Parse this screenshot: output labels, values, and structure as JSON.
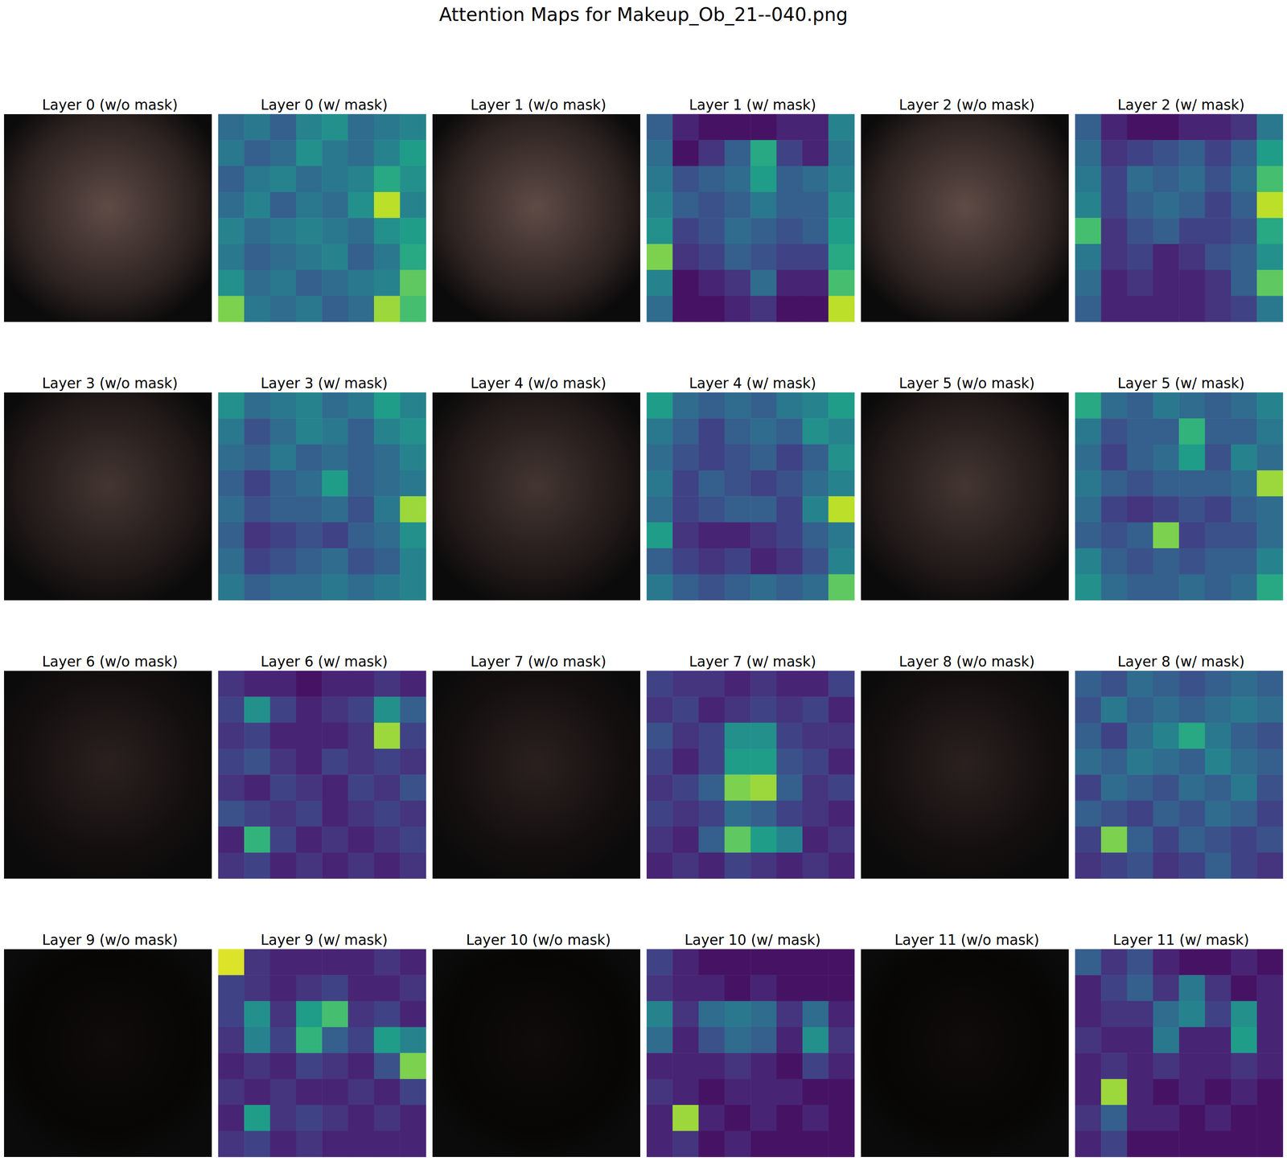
{
  "title": "Attention Maps for Makeup_Ob_21--040.png",
  "chart_data": [
    {
      "type": "image",
      "title": "Layer 0 (w/o mask)"
    },
    {
      "type": "heatmap",
      "title": "Layer 0 (w/ mask)",
      "zlim": [
        0,
        1
      ],
      "cells": [
        [
          0.35,
          0.4,
          0.3,
          0.45,
          0.5,
          0.35,
          0.4,
          0.45
        ],
        [
          0.4,
          0.3,
          0.35,
          0.5,
          0.4,
          0.35,
          0.45,
          0.55
        ],
        [
          0.3,
          0.4,
          0.45,
          0.35,
          0.4,
          0.45,
          0.6,
          0.5
        ],
        [
          0.35,
          0.45,
          0.3,
          0.4,
          0.35,
          0.5,
          0.9,
          0.45
        ],
        [
          0.45,
          0.35,
          0.4,
          0.45,
          0.4,
          0.35,
          0.5,
          0.55
        ],
        [
          0.4,
          0.3,
          0.35,
          0.4,
          0.45,
          0.3,
          0.4,
          0.6
        ],
        [
          0.5,
          0.35,
          0.4,
          0.3,
          0.35,
          0.4,
          0.45,
          0.75
        ],
        [
          0.8,
          0.4,
          0.35,
          0.4,
          0.3,
          0.35,
          0.85,
          0.7
        ]
      ]
    },
    {
      "type": "image",
      "title": "Layer 1 (w/o mask)"
    },
    {
      "type": "heatmap",
      "title": "Layer 1 (w/ mask)",
      "zlim": [
        0,
        1
      ],
      "cells": [
        [
          0.3,
          0.1,
          0.05,
          0.05,
          0.05,
          0.1,
          0.1,
          0.45
        ],
        [
          0.35,
          0.05,
          0.15,
          0.3,
          0.6,
          0.2,
          0.1,
          0.4
        ],
        [
          0.4,
          0.25,
          0.3,
          0.35,
          0.55,
          0.3,
          0.35,
          0.45
        ],
        [
          0.45,
          0.3,
          0.25,
          0.3,
          0.4,
          0.3,
          0.3,
          0.5
        ],
        [
          0.5,
          0.2,
          0.25,
          0.35,
          0.3,
          0.25,
          0.3,
          0.55
        ],
        [
          0.8,
          0.15,
          0.2,
          0.3,
          0.25,
          0.2,
          0.2,
          0.6
        ],
        [
          0.45,
          0.05,
          0.1,
          0.15,
          0.35,
          0.1,
          0.1,
          0.7
        ],
        [
          0.35,
          0.05,
          0.05,
          0.1,
          0.15,
          0.05,
          0.05,
          0.9
        ]
      ]
    },
    {
      "type": "image",
      "title": "Layer 2 (w/o mask)"
    },
    {
      "type": "heatmap",
      "title": "Layer 2 (w/ mask)",
      "zlim": [
        0,
        1
      ],
      "cells": [
        [
          0.3,
          0.1,
          0.05,
          0.05,
          0.1,
          0.1,
          0.15,
          0.4
        ],
        [
          0.35,
          0.15,
          0.2,
          0.25,
          0.3,
          0.2,
          0.3,
          0.55
        ],
        [
          0.4,
          0.2,
          0.35,
          0.3,
          0.35,
          0.25,
          0.35,
          0.7
        ],
        [
          0.45,
          0.2,
          0.3,
          0.35,
          0.3,
          0.2,
          0.3,
          0.9
        ],
        [
          0.7,
          0.15,
          0.25,
          0.3,
          0.2,
          0.2,
          0.25,
          0.6
        ],
        [
          0.4,
          0.15,
          0.2,
          0.1,
          0.15,
          0.25,
          0.3,
          0.5
        ],
        [
          0.35,
          0.1,
          0.15,
          0.1,
          0.1,
          0.15,
          0.3,
          0.75
        ],
        [
          0.3,
          0.1,
          0.1,
          0.1,
          0.1,
          0.15,
          0.2,
          0.4
        ]
      ]
    },
    {
      "type": "image",
      "title": "Layer 3 (w/o mask)"
    },
    {
      "type": "heatmap",
      "title": "Layer 3 (w/ mask)",
      "zlim": [
        0,
        1
      ],
      "cells": [
        [
          0.5,
          0.35,
          0.4,
          0.45,
          0.35,
          0.4,
          0.55,
          0.45
        ],
        [
          0.4,
          0.25,
          0.35,
          0.45,
          0.4,
          0.3,
          0.45,
          0.5
        ],
        [
          0.35,
          0.3,
          0.4,
          0.3,
          0.35,
          0.3,
          0.35,
          0.45
        ],
        [
          0.3,
          0.2,
          0.3,
          0.35,
          0.55,
          0.3,
          0.35,
          0.4
        ],
        [
          0.35,
          0.25,
          0.3,
          0.3,
          0.35,
          0.25,
          0.4,
          0.85
        ],
        [
          0.3,
          0.15,
          0.2,
          0.25,
          0.2,
          0.3,
          0.35,
          0.5
        ],
        [
          0.35,
          0.2,
          0.25,
          0.3,
          0.35,
          0.25,
          0.3,
          0.45
        ],
        [
          0.4,
          0.3,
          0.35,
          0.35,
          0.4,
          0.35,
          0.4,
          0.45
        ]
      ]
    },
    {
      "type": "image",
      "title": "Layer 4 (w/o mask)"
    },
    {
      "type": "heatmap",
      "title": "Layer 4 (w/ mask)",
      "zlim": [
        0,
        1
      ],
      "cells": [
        [
          0.55,
          0.35,
          0.3,
          0.35,
          0.3,
          0.4,
          0.45,
          0.55
        ],
        [
          0.4,
          0.3,
          0.2,
          0.3,
          0.35,
          0.3,
          0.5,
          0.45
        ],
        [
          0.35,
          0.25,
          0.2,
          0.25,
          0.3,
          0.2,
          0.3,
          0.5
        ],
        [
          0.4,
          0.2,
          0.3,
          0.25,
          0.2,
          0.25,
          0.35,
          0.45
        ],
        [
          0.35,
          0.2,
          0.25,
          0.3,
          0.3,
          0.2,
          0.45,
          0.9
        ],
        [
          0.55,
          0.15,
          0.1,
          0.1,
          0.15,
          0.2,
          0.3,
          0.4
        ],
        [
          0.3,
          0.2,
          0.15,
          0.2,
          0.1,
          0.15,
          0.25,
          0.45
        ],
        [
          0.4,
          0.3,
          0.25,
          0.3,
          0.35,
          0.3,
          0.35,
          0.75
        ]
      ]
    },
    {
      "type": "image",
      "title": "Layer 5 (w/o mask)"
    },
    {
      "type": "heatmap",
      "title": "Layer 5 (w/ mask)",
      "zlim": [
        0,
        1
      ],
      "cells": [
        [
          0.6,
          0.35,
          0.3,
          0.4,
          0.35,
          0.3,
          0.35,
          0.45
        ],
        [
          0.4,
          0.25,
          0.3,
          0.3,
          0.65,
          0.3,
          0.3,
          0.4
        ],
        [
          0.35,
          0.2,
          0.3,
          0.35,
          0.55,
          0.25,
          0.45,
          0.35
        ],
        [
          0.4,
          0.3,
          0.25,
          0.3,
          0.3,
          0.3,
          0.35,
          0.85
        ],
        [
          0.35,
          0.2,
          0.15,
          0.2,
          0.25,
          0.2,
          0.3,
          0.35
        ],
        [
          0.3,
          0.25,
          0.3,
          0.8,
          0.2,
          0.25,
          0.25,
          0.35
        ],
        [
          0.45,
          0.3,
          0.25,
          0.3,
          0.25,
          0.3,
          0.3,
          0.45
        ],
        [
          0.5,
          0.35,
          0.3,
          0.3,
          0.35,
          0.3,
          0.35,
          0.6
        ]
      ]
    },
    {
      "type": "image",
      "title": "Layer 6 (w/o mask)"
    },
    {
      "type": "heatmap",
      "title": "Layer 6 (w/ mask)",
      "zlim": [
        0,
        1
      ],
      "cells": [
        [
          0.15,
          0.1,
          0.1,
          0.05,
          0.1,
          0.1,
          0.15,
          0.1
        ],
        [
          0.2,
          0.5,
          0.2,
          0.1,
          0.15,
          0.2,
          0.5,
          0.3
        ],
        [
          0.15,
          0.2,
          0.1,
          0.1,
          0.1,
          0.15,
          0.85,
          0.2
        ],
        [
          0.2,
          0.25,
          0.15,
          0.1,
          0.2,
          0.15,
          0.2,
          0.15
        ],
        [
          0.15,
          0.1,
          0.2,
          0.15,
          0.1,
          0.2,
          0.15,
          0.25
        ],
        [
          0.25,
          0.2,
          0.15,
          0.2,
          0.1,
          0.15,
          0.2,
          0.15
        ],
        [
          0.1,
          0.65,
          0.2,
          0.1,
          0.15,
          0.1,
          0.15,
          0.2
        ],
        [
          0.15,
          0.2,
          0.1,
          0.15,
          0.1,
          0.15,
          0.1,
          0.15
        ]
      ]
    },
    {
      "type": "image",
      "title": "Layer 7 (w/o mask)"
    },
    {
      "type": "heatmap",
      "title": "Layer 7 (w/ mask)",
      "zlim": [
        0,
        1
      ],
      "cells": [
        [
          0.2,
          0.15,
          0.15,
          0.1,
          0.15,
          0.1,
          0.1,
          0.2
        ],
        [
          0.15,
          0.2,
          0.1,
          0.15,
          0.2,
          0.15,
          0.2,
          0.1
        ],
        [
          0.25,
          0.15,
          0.2,
          0.5,
          0.5,
          0.2,
          0.15,
          0.15
        ],
        [
          0.2,
          0.1,
          0.2,
          0.55,
          0.55,
          0.25,
          0.2,
          0.1
        ],
        [
          0.15,
          0.2,
          0.3,
          0.8,
          0.85,
          0.3,
          0.15,
          0.2
        ],
        [
          0.2,
          0.15,
          0.2,
          0.35,
          0.3,
          0.2,
          0.15,
          0.1
        ],
        [
          0.15,
          0.1,
          0.3,
          0.75,
          0.55,
          0.45,
          0.1,
          0.15
        ],
        [
          0.1,
          0.15,
          0.1,
          0.2,
          0.15,
          0.1,
          0.15,
          0.1
        ]
      ]
    },
    {
      "type": "image",
      "title": "Layer 8 (w/o mask)"
    },
    {
      "type": "heatmap",
      "title": "Layer 8 (w/ mask)",
      "zlim": [
        0,
        1
      ],
      "cells": [
        [
          0.3,
          0.25,
          0.35,
          0.3,
          0.25,
          0.3,
          0.35,
          0.3
        ],
        [
          0.25,
          0.4,
          0.3,
          0.35,
          0.3,
          0.35,
          0.4,
          0.35
        ],
        [
          0.3,
          0.2,
          0.35,
          0.45,
          0.6,
          0.4,
          0.3,
          0.25
        ],
        [
          0.35,
          0.3,
          0.4,
          0.35,
          0.3,
          0.45,
          0.35,
          0.3
        ],
        [
          0.2,
          0.35,
          0.3,
          0.25,
          0.35,
          0.3,
          0.4,
          0.25
        ],
        [
          0.3,
          0.25,
          0.2,
          0.3,
          0.25,
          0.35,
          0.3,
          0.2
        ],
        [
          0.2,
          0.8,
          0.3,
          0.2,
          0.3,
          0.25,
          0.2,
          0.25
        ],
        [
          0.15,
          0.2,
          0.25,
          0.15,
          0.2,
          0.3,
          0.2,
          0.15
        ]
      ]
    },
    {
      "type": "image",
      "title": "Layer 9 (w/o mask)"
    },
    {
      "type": "heatmap",
      "title": "Layer 9 (w/ mask)",
      "zlim": [
        0,
        1
      ],
      "cells": [
        [
          0.95,
          0.15,
          0.1,
          0.1,
          0.1,
          0.1,
          0.15,
          0.1
        ],
        [
          0.2,
          0.15,
          0.1,
          0.15,
          0.2,
          0.1,
          0.1,
          0.15
        ],
        [
          0.2,
          0.5,
          0.15,
          0.55,
          0.7,
          0.15,
          0.2,
          0.1
        ],
        [
          0.15,
          0.45,
          0.2,
          0.65,
          0.3,
          0.2,
          0.55,
          0.45
        ],
        [
          0.1,
          0.15,
          0.1,
          0.2,
          0.15,
          0.1,
          0.25,
          0.8
        ],
        [
          0.15,
          0.1,
          0.15,
          0.1,
          0.1,
          0.15,
          0.1,
          0.2
        ],
        [
          0.1,
          0.55,
          0.15,
          0.2,
          0.15,
          0.1,
          0.15,
          0.1
        ],
        [
          0.15,
          0.2,
          0.1,
          0.15,
          0.1,
          0.1,
          0.1,
          0.1
        ]
      ]
    },
    {
      "type": "image",
      "title": "Layer 10 (w/o mask)"
    },
    {
      "type": "heatmap",
      "title": "Layer 10 (w/ mask)",
      "zlim": [
        0,
        1
      ],
      "cells": [
        [
          0.2,
          0.1,
          0.05,
          0.05,
          0.05,
          0.05,
          0.05,
          0.05
        ],
        [
          0.15,
          0.1,
          0.1,
          0.05,
          0.1,
          0.05,
          0.05,
          0.05
        ],
        [
          0.45,
          0.15,
          0.35,
          0.4,
          0.35,
          0.15,
          0.35,
          0.1
        ],
        [
          0.35,
          0.1,
          0.25,
          0.35,
          0.3,
          0.1,
          0.5,
          0.15
        ],
        [
          0.1,
          0.1,
          0.1,
          0.15,
          0.1,
          0.05,
          0.2,
          0.1
        ],
        [
          0.15,
          0.1,
          0.05,
          0.1,
          0.1,
          0.1,
          0.05,
          0.05
        ],
        [
          0.1,
          0.85,
          0.1,
          0.05,
          0.1,
          0.05,
          0.1,
          0.05
        ],
        [
          0.1,
          0.15,
          0.05,
          0.1,
          0.05,
          0.05,
          0.05,
          0.05
        ]
      ]
    },
    {
      "type": "image",
      "title": "Layer 11 (w/o mask)"
    },
    {
      "type": "heatmap",
      "title": "Layer 11 (w/ mask)",
      "zlim": [
        0,
        1
      ],
      "cells": [
        [
          0.3,
          0.15,
          0.25,
          0.1,
          0.05,
          0.05,
          0.1,
          0.05
        ],
        [
          0.1,
          0.2,
          0.3,
          0.15,
          0.4,
          0.15,
          0.05,
          0.1
        ],
        [
          0.1,
          0.15,
          0.15,
          0.35,
          0.45,
          0.2,
          0.5,
          0.1
        ],
        [
          0.15,
          0.1,
          0.1,
          0.4,
          0.1,
          0.1,
          0.55,
          0.1
        ],
        [
          0.1,
          0.15,
          0.1,
          0.15,
          0.1,
          0.1,
          0.15,
          0.1
        ],
        [
          0.1,
          0.85,
          0.1,
          0.05,
          0.1,
          0.05,
          0.1,
          0.05
        ],
        [
          0.15,
          0.3,
          0.1,
          0.1,
          0.05,
          0.1,
          0.05,
          0.05
        ],
        [
          0.1,
          0.2,
          0.05,
          0.05,
          0.05,
          0.05,
          0.05,
          0.05
        ]
      ]
    }
  ]
}
